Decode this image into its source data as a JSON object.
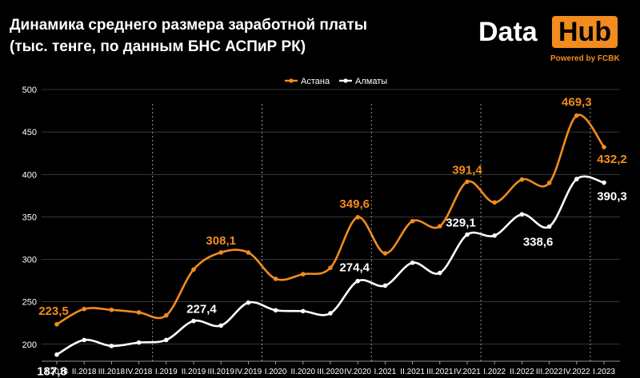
{
  "header": {
    "title_line1": "Динамика среднего размера заработной платы",
    "title_line2": "(тыс. тенге, по данным БНС АСПиР РК)"
  },
  "logo": {
    "word1": "Data",
    "word2": "Hub",
    "powered": "Powered by FCBK"
  },
  "colors": {
    "astana": "#f28c1e",
    "almaty": "#ffffff",
    "grid": "#6b6b6b",
    "divider": "#9a9a9a"
  },
  "chart_data": {
    "type": "line",
    "title": "Динамика среднего размера заработной платы (тыс. тенге, по данным БНС АСПиР РК)",
    "categories": [
      "I.2018",
      "II.2018",
      "III.2018",
      "IV.2018",
      "I.2019",
      "II.2019",
      "III.2019",
      "IV.2019",
      "I.2020",
      "II.2020",
      "III.2020",
      "IV.2020",
      "I.2021",
      "II.2021",
      "III.2021",
      "IV.2021",
      "I.2022",
      "II.2022",
      "III.2022",
      "IV.2022",
      "I.2023"
    ],
    "series": [
      {
        "name": "Астана",
        "values": [
          223.5,
          241.5,
          240.5,
          237.5,
          234,
          288,
          308.1,
          308,
          277,
          282.5,
          290,
          349.6,
          307,
          345,
          339,
          391.4,
          367,
          394,
          390,
          469.3,
          432.2
        ]
      },
      {
        "name": "Алматы",
        "values": [
          187.8,
          205,
          198,
          202,
          205,
          227.4,
          222,
          249,
          240,
          239,
          236.5,
          274.4,
          269,
          296,
          284,
          329.1,
          328,
          353,
          338.6,
          394.5,
          390.3
        ]
      }
    ],
    "data_labels": {
      "Астана": {
        "0": "223,5",
        "6": "308,1",
        "11": "349,6",
        "15": "391,4",
        "19": "469,3",
        "20": "432,2"
      },
      "Алматы": {
        "0": "187,8",
        "5": "227,4",
        "11": "274,4",
        "15": "329,1",
        "18": "338,6",
        "20": "390,3"
      }
    },
    "y_ticks": [
      200,
      250,
      300,
      350,
      400,
      450,
      500
    ],
    "ylim": [
      180,
      500
    ],
    "year_dividers_after": [
      3,
      7,
      11,
      15,
      19
    ],
    "legend": "top-center",
    "grid": true
  }
}
